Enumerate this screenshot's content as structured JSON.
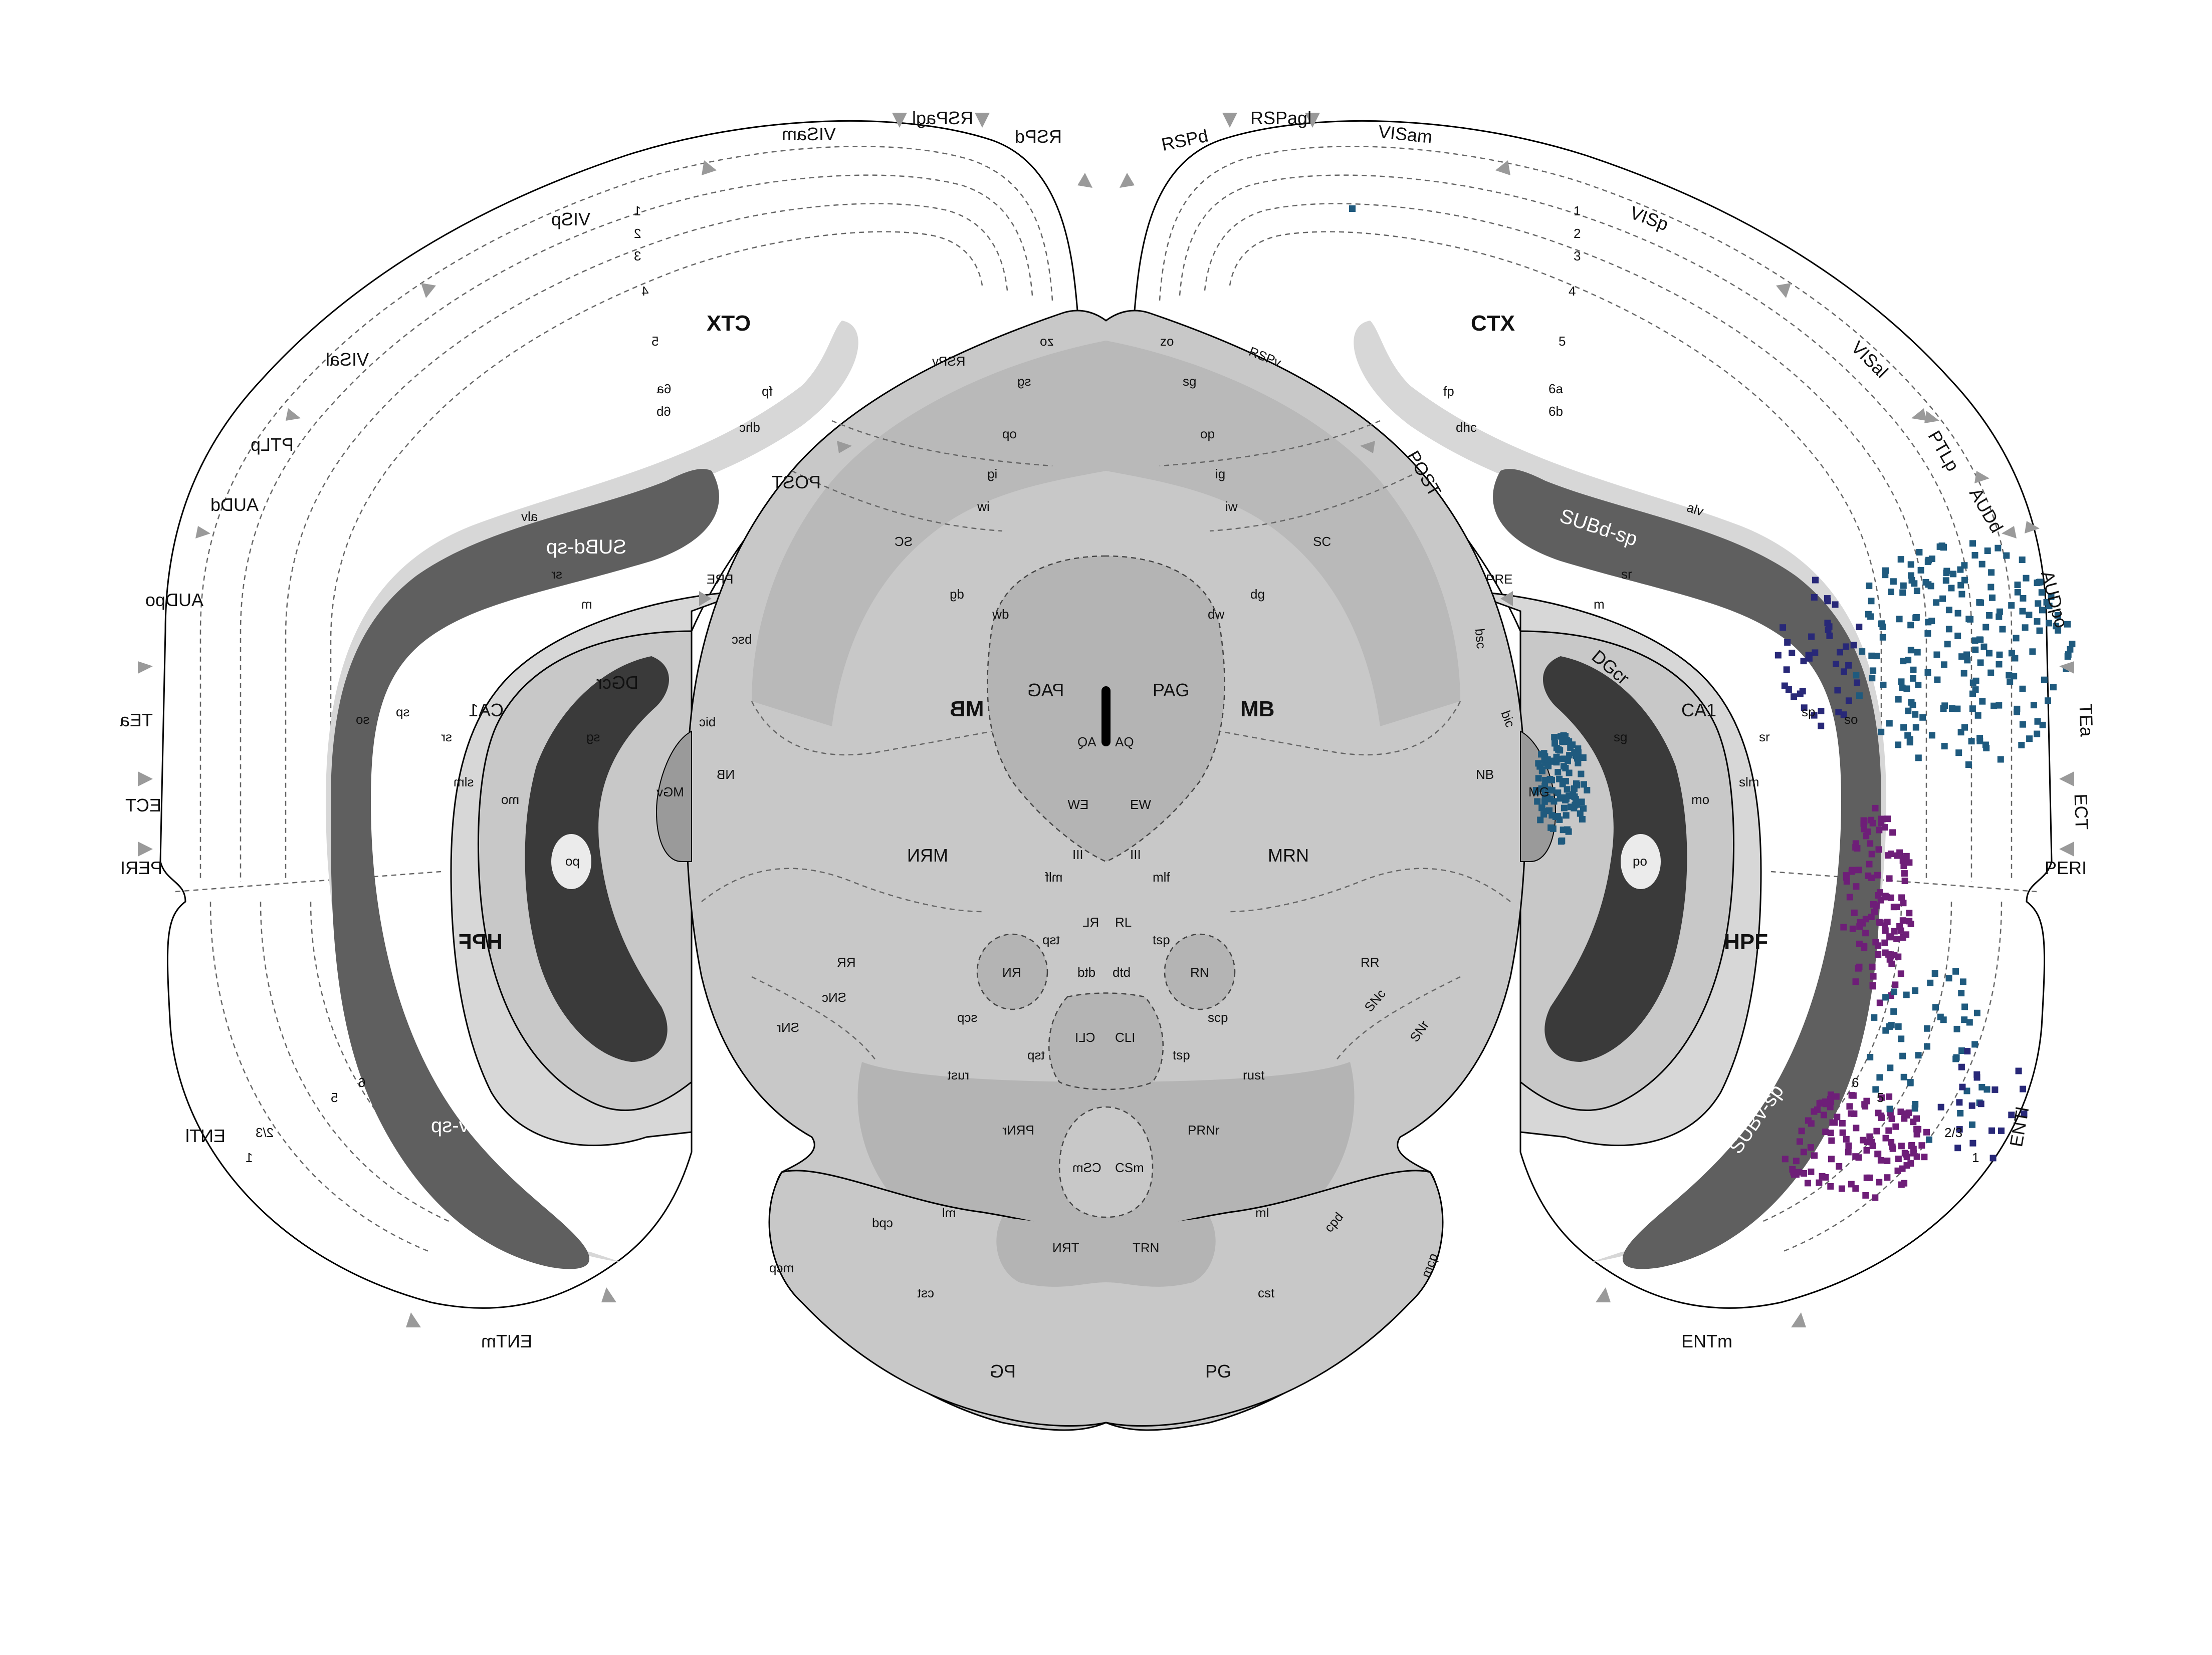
{
  "colors": {
    "cortex": "#ebebeb",
    "brainstem": "#c8c8c8",
    "midbrain_dark": "#b4b4b4",
    "subiculum": "#5f5f5f",
    "dentate": "#3a3a3a",
    "cells_teal": "#1f5a7e",
    "cells_purple": "#6e1e78",
    "cells_navy": "#282878",
    "marker": "#9a9a9a"
  },
  "left_labels": {
    "rspagl": "RSPagl",
    "rspd": "RSPd",
    "visam": "VISam",
    "visp": "VISp",
    "visal": "VISal",
    "ptlp": "PTLp",
    "audd": "AUDd",
    "audpo": "AUDpo",
    "tea": "TEa",
    "ect": "ECT",
    "peri": "PERI",
    "entl": "ENTl",
    "entm": "ENTm",
    "ctx": "CTX",
    "hpf": "HPF",
    "fp": "fp",
    "dhc": "dhc",
    "post": "POST",
    "pre": "PRE",
    "alv": "alv",
    "subd": "SUBd-sp",
    "subv": "SUBv-sp",
    "sr": "sr",
    "m": "m",
    "dgcr": "DGcr",
    "ca1": "CA1",
    "sp": "sp",
    "slm": "slm",
    "mo": "mo",
    "sg": "sg",
    "po": "po",
    "so": "so",
    "bsc": "bsc",
    "bic": "bic",
    "nb": "NB",
    "mgv": "MGv",
    "rspv": "RSPv",
    "zo": "zo",
    "sgl": "sg",
    "op": "op",
    "ig": "ig",
    "iw": "iw",
    "sc": "SC",
    "dg": "dg",
    "dw": "dw",
    "mb": "MB",
    "pag": "PAG",
    "aq": "AQ",
    "ew": "EW",
    "iii": "III",
    "mlf": "mlf",
    "mrn": "MRN",
    "rl": "RL",
    "tsp": "tsp",
    "rn": "RN",
    "dtd": "dtd",
    "rr": "RR",
    "snc": "SNc",
    "snr": "SNr",
    "scp": "scp",
    "cli": "CLI",
    "rust": "rust",
    "prnr": "PRNr",
    "csm": "CSm",
    "ml": "ml",
    "cpd": "cpd",
    "trn": "TRN",
    "mcp": "mcp",
    "cst": "cst",
    "pg": "PG",
    "l1": "1",
    "l2": "2",
    "l3": "3",
    "l4": "4",
    "l5": "5",
    "l6a": "6a",
    "l6b": "6b",
    "l2_3": "2/3",
    "l6": "6",
    "l5b": "5"
  },
  "right_labels": {
    "rspd": "RSPd",
    "rspagl": "RSPagl",
    "visam": "VISam",
    "visp": "VISp",
    "visal": "VISal",
    "ptlp": "PTLp",
    "audd": "AUDd",
    "audpo": "AUDpo",
    "tea": "TEa",
    "ect": "ECT",
    "peri": "PERI",
    "entl": "ENTl",
    "entm": "ENTm",
    "ctx": "CTX",
    "hpf": "HPF",
    "fp": "fp",
    "dhc": "dhc",
    "post": "POST",
    "pre": "PRE",
    "alv": "alv",
    "subd": "SUBd-sp",
    "subv": "SUBv-sp",
    "sr": "sr",
    "m": "m",
    "dgcr": "DGcr",
    "ca1": "CA1",
    "sp": "sp",
    "slm": "slm",
    "mo": "mo",
    "sg": "sg",
    "po": "po",
    "so": "so",
    "bsc": "bsc",
    "bic": "bic",
    "nb": "NB",
    "mg": "MG",
    "rspv": "RSPv",
    "zo": "zo",
    "sgl": "sg",
    "op": "op",
    "ig": "ig",
    "iw": "iw",
    "sc": "SC",
    "dg": "dg",
    "dw": "dw",
    "mb": "MB",
    "pag": "PAG",
    "aq": "AQ",
    "ew": "EW",
    "iii": "III",
    "mlf": "mlf",
    "mrn": "MRN",
    "rl": "RL",
    "tsp": "tsp",
    "rn": "RN",
    "dtd": "dtd",
    "rr": "RR",
    "snc": "SNc",
    "snr": "SNr",
    "scp": "scp",
    "cli": "CLI",
    "rust": "rust",
    "prnr": "PRNr",
    "csm": "CSm",
    "ml": "ml",
    "cpd": "cpd",
    "trn": "TRN",
    "mcp": "mcp",
    "cst": "cst",
    "pg": "PG",
    "l1": "1",
    "l2": "2",
    "l3": "3",
    "l4": "4",
    "l5": "5",
    "l6a": "6a",
    "l6b": "6b",
    "l2_3": "2/3",
    "l6": "6",
    "l5b": "5"
  }
}
